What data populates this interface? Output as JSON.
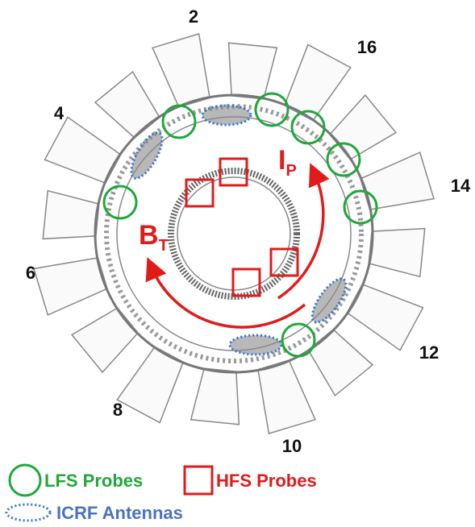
{
  "port_labels": [
    "2",
    "16",
    "4",
    "14",
    "6",
    "12",
    "8",
    "10"
  ],
  "field_labels": [
    {
      "main": "I",
      "sub": "P"
    },
    {
      "main": "B",
      "sub": "T"
    }
  ],
  "legend": {
    "lfs": "LFS Probes",
    "hfs": "HFS Probes",
    "icrf": "ICRF Antennas"
  }
}
